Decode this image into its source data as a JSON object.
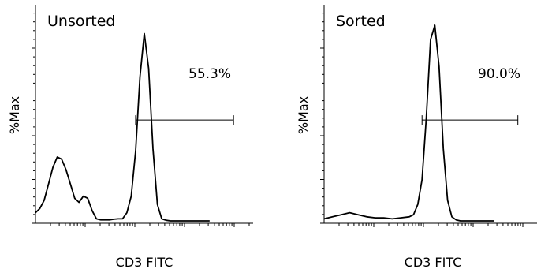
{
  "chart_data": [
    {
      "type": "line",
      "title": "Unsorted",
      "xlabel": "CD3 FITC",
      "ylabel": "%Max",
      "xlim": [
        0,
        1
      ],
      "ylim": [
        0,
        100
      ],
      "x_log_scale": true,
      "series": [
        {
          "x": [
            0.0,
            0.02,
            0.04,
            0.06,
            0.08,
            0.1,
            0.12,
            0.14,
            0.16,
            0.18,
            0.2,
            0.22,
            0.24,
            0.26,
            0.28,
            0.3,
            0.32,
            0.34,
            0.36,
            0.38,
            0.4,
            0.42,
            0.44,
            0.46,
            0.48,
            0.5,
            0.52,
            0.54,
            0.56,
            0.58,
            0.6,
            0.62,
            0.64,
            0.66,
            0.68,
            0.7,
            0.72,
            0.74,
            0.76,
            0.78,
            0.8
          ],
          "values": [
            4,
            6,
            10,
            18,
            26,
            31,
            30,
            25,
            18,
            11,
            9,
            12,
            11,
            5,
            1,
            0.5,
            0.5,
            0.5,
            0.8,
            1,
            1,
            4,
            12,
            34,
            70,
            91,
            74,
            35,
            8,
            1,
            0.3,
            0,
            0,
            0,
            0,
            0,
            0,
            0,
            0,
            0,
            0
          ]
        }
      ],
      "gate": {
        "x_start": 0.46,
        "x_end": 0.91,
        "y": 49,
        "label": "55.3%"
      },
      "grid": false
    },
    {
      "type": "line",
      "title": "Sorted",
      "xlabel": "CD3 FITC",
      "ylabel": "%Max",
      "xlim": [
        0,
        1
      ],
      "ylim": [
        0,
        100
      ],
      "x_log_scale": true,
      "series": [
        {
          "x": [
            0.0,
            0.04,
            0.08,
            0.12,
            0.16,
            0.2,
            0.24,
            0.28,
            0.32,
            0.36,
            0.4,
            0.42,
            0.44,
            0.46,
            0.48,
            0.5,
            0.52,
            0.54,
            0.56,
            0.58,
            0.6,
            0.62,
            0.64,
            0.66,
            0.7,
            0.8
          ],
          "values": [
            1,
            2,
            3,
            4,
            3,
            2,
            1.5,
            1.5,
            1,
            1.5,
            2,
            3,
            8,
            20,
            50,
            88,
            95,
            75,
            35,
            10,
            2,
            0.5,
            0,
            0,
            0,
            0
          ]
        }
      ],
      "gate": {
        "x_start": 0.46,
        "x_end": 0.91,
        "y": 49,
        "label": "90.0%"
      },
      "grid": false
    }
  ]
}
